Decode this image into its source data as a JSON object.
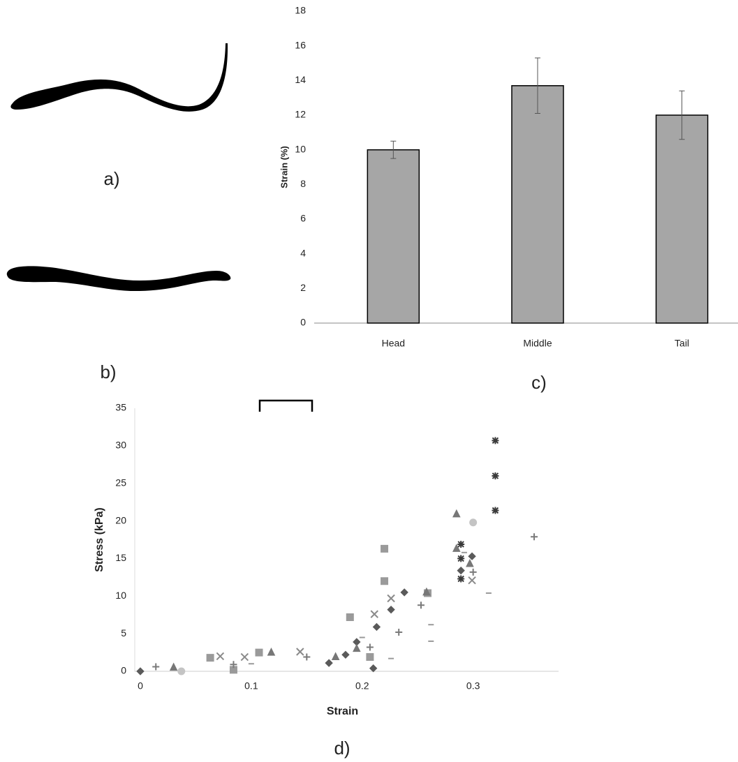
{
  "panel_labels": [
    "a)",
    "b)",
    "c)",
    "d)"
  ],
  "chart_data": [
    {
      "type": "bar",
      "ylabel": "Strain (%)",
      "categories": [
        "Head",
        "Middle",
        "Tail"
      ],
      "values": [
        10,
        13.7,
        12
      ],
      "errors": [
        0.5,
        1.6,
        1.4
      ],
      "color": "#a6a6a6",
      "ylim": [
        0,
        18
      ],
      "yticks": [
        0,
        2,
        4,
        6,
        8,
        10,
        12,
        14,
        16,
        18
      ],
      "grid": false
    },
    {
      "type": "scatter",
      "xlabel": "Strain",
      "ylabel": "Stress (kPa)",
      "xlim": [
        0,
        0.377
      ],
      "xticks": [
        0,
        0.1,
        0.2,
        0.3
      ],
      "ylim": [
        0,
        35
      ],
      "yticks": [
        0,
        5,
        10,
        15,
        20,
        25,
        30,
        35
      ],
      "grid": false,
      "series": [
        {
          "marker": "asterisk",
          "color": "#3a3a3a",
          "x": [
            0.32,
            0.32,
            0.32,
            0.289,
            0.289,
            0.289
          ],
          "y": [
            30.7,
            26,
            21.4,
            16.9,
            15,
            12.3
          ]
        },
        {
          "marker": "diamond",
          "color": "#5a5a5a",
          "x": [
            0,
            0.17,
            0.185,
            0.195,
            0.213,
            0.226,
            0.238,
            0.289,
            0.299,
            0.21
          ],
          "y": [
            0,
            1.1,
            2.2,
            3.9,
            5.9,
            8.2,
            10.5,
            13.4,
            15.3,
            0.4
          ]
        },
        {
          "marker": "square",
          "color": "#9a9a9a",
          "x": [
            0.063,
            0.084,
            0.107,
            0.189,
            0.22,
            0.22,
            0.207,
            0.259
          ],
          "y": [
            1.8,
            0.2,
            2.5,
            7.2,
            12,
            16.3,
            1.9,
            10.4
          ]
        },
        {
          "marker": "triangle",
          "color": "#777777",
          "x": [
            0.03,
            0.118,
            0.176,
            0.195,
            0.285,
            0.285,
            0.297,
            0.258
          ],
          "y": [
            0.5,
            2.5,
            1.9,
            3,
            20.9,
            16.3,
            14.3,
            10.5
          ]
        },
        {
          "marker": "circle",
          "color": "#c4c4c4",
          "x": [
            0.3,
            0.037
          ],
          "y": [
            19.8,
            0
          ]
        },
        {
          "marker": "cross",
          "color": "#8a8a8a",
          "x": [
            0.072,
            0.094,
            0.144,
            0.211,
            0.226,
            0.299
          ],
          "y": [
            2,
            1.9,
            2.6,
            7.6,
            9.7,
            12.1
          ]
        },
        {
          "marker": "plus",
          "color": "#7a7a7a",
          "x": [
            0.014,
            0.084,
            0.15,
            0.207,
            0.233,
            0.253,
            0.3,
            0.355
          ],
          "y": [
            0.6,
            0.9,
            1.9,
            3.2,
            5.2,
            8.8,
            13.2,
            17.9
          ]
        },
        {
          "marker": "dash",
          "color": "#9a9a9a",
          "x": [
            0.1,
            0.2,
            0.226,
            0.262,
            0.262,
            0.292,
            0.314
          ],
          "y": [
            1,
            4.5,
            1.7,
            6.2,
            4,
            15.8,
            10.4
          ]
        }
      ]
    }
  ]
}
